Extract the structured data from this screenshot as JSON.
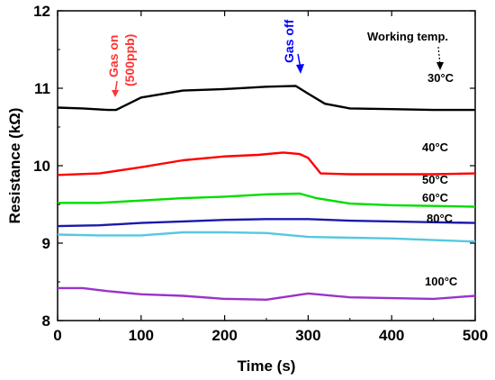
{
  "chart_data": {
    "type": "line",
    "xlabel": "Time (s)",
    "ylabel": "Resistance  (kΩ)",
    "xlim": [
      0,
      500
    ],
    "ylim": [
      8,
      12
    ],
    "xticks": [
      0,
      100,
      200,
      300,
      400,
      500
    ],
    "yticks": [
      8,
      9,
      10,
      11,
      12
    ],
    "grid": false,
    "series": [
      {
        "name": "30°C",
        "color": "#000000",
        "x": [
          0,
          30,
          60,
          70,
          100,
          150,
          200,
          250,
          285,
          300,
          320,
          350,
          400,
          450,
          500
        ],
        "y": [
          10.75,
          10.74,
          10.72,
          10.72,
          10.88,
          10.97,
          10.99,
          11.02,
          11.03,
          10.93,
          10.8,
          10.74,
          10.73,
          10.72,
          10.72
        ]
      },
      {
        "name": "40°C",
        "color": "#ff0000",
        "x": [
          0,
          50,
          100,
          150,
          200,
          240,
          270,
          290,
          300,
          315,
          350,
          400,
          450,
          500
        ],
        "y": [
          9.88,
          9.9,
          9.98,
          10.07,
          10.12,
          10.14,
          10.17,
          10.15,
          10.1,
          9.9,
          9.89,
          9.89,
          9.89,
          9.9
        ]
      },
      {
        "name": "50°C",
        "color": "#00dd00",
        "x": [
          0,
          50,
          100,
          150,
          200,
          250,
          290,
          310,
          350,
          400,
          450,
          500
        ],
        "y": [
          9.52,
          9.52,
          9.55,
          9.58,
          9.6,
          9.63,
          9.64,
          9.58,
          9.51,
          9.49,
          9.48,
          9.47
        ]
      },
      {
        "name": "60°C",
        "color": "#1a1aaa",
        "x": [
          0,
          50,
          100,
          150,
          200,
          250,
          300,
          350,
          400,
          450,
          500
        ],
        "y": [
          9.22,
          9.23,
          9.26,
          9.28,
          9.3,
          9.31,
          9.31,
          9.29,
          9.28,
          9.27,
          9.26
        ]
      },
      {
        "name": "80°C",
        "color": "#55c8e0",
        "x": [
          0,
          50,
          100,
          150,
          200,
          250,
          300,
          350,
          400,
          450,
          500
        ],
        "y": [
          9.11,
          9.1,
          9.1,
          9.14,
          9.14,
          9.13,
          9.08,
          9.07,
          9.06,
          9.04,
          9.02
        ]
      },
      {
        "name": "100°C",
        "color": "#9933cc",
        "x": [
          0,
          30,
          60,
          100,
          150,
          200,
          250,
          300,
          350,
          400,
          450,
          500
        ],
        "y": [
          8.42,
          8.42,
          8.38,
          8.34,
          8.32,
          8.28,
          8.27,
          8.35,
          8.3,
          8.29,
          8.28,
          8.32
        ]
      }
    ],
    "annotations": [
      {
        "text": "Gas on",
        "color": "#ff3333",
        "x": 68
      },
      {
        "text": "(500ppb)",
        "color": "#ff3333",
        "x": 68
      },
      {
        "text": "Gas off",
        "color": "#0000ff",
        "x": 290
      },
      {
        "text": "Working temp.",
        "color": "#000000"
      }
    ]
  }
}
